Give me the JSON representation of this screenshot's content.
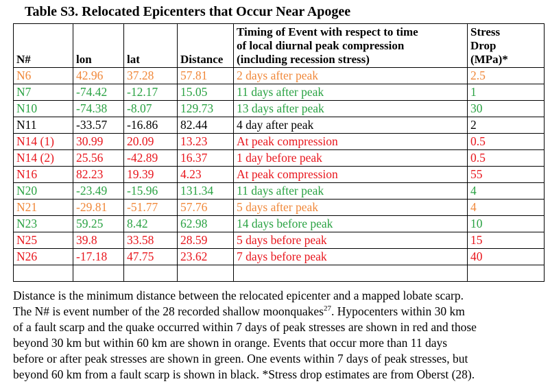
{
  "title": "Table S3. Relocated Epicenters that Occur Near Apogee",
  "headers": {
    "num": "N#",
    "lon": "lon",
    "lat": "lat",
    "distance": "Distance",
    "timing_l1": "Timing of Event with respect to time",
    "timing_l2": "of local diurnal peak compression",
    "timing_l3": "(including recession stress)",
    "stress_l1": "Stress",
    "stress_l2": "Drop",
    "stress_l3": "(MPa)*"
  },
  "colors": {
    "red": "#e8161d",
    "orange": "#f0883a",
    "green": "#2aa243",
    "black": "#000000"
  },
  "rows": [
    {
      "num": "N6",
      "lon": "42.96",
      "lat": "37.28",
      "distance": "57.81",
      "timing": "2 days after peak",
      "stress": "2.5",
      "color": "orange"
    },
    {
      "num": "N7",
      "lon": "-74.42",
      "lat": "-12.17",
      "distance": "15.05",
      "timing": "11 days after peak",
      "stress": "1",
      "color": "green"
    },
    {
      "num": "N10",
      "lon": "-74.38",
      "lat": "-8.07",
      "distance": "129.73",
      "timing": "13 days after peak",
      "stress": "30",
      "color": "green"
    },
    {
      "num": "N11",
      "lon": "-33.57",
      "lat": "-16.86",
      "distance": "82.44",
      "timing": "4 day after peak",
      "stress": "2",
      "color": "black"
    },
    {
      "num": "N14 (1)",
      "lon": "30.99",
      "lat": "20.09",
      "distance": "13.23",
      "timing": "At peak compression",
      "stress": "0.5",
      "color": "red"
    },
    {
      "num": "N14 (2)",
      "lon": "25.56",
      "lat": "-42.89",
      "distance": "16.37",
      "timing": "1 day before peak",
      "stress": "0.5",
      "color": "red"
    },
    {
      "num": "N16",
      "lon": "82.23",
      "lat": "19.39",
      "distance": "4.23",
      "timing": "At peak compression",
      "stress": "55",
      "color": "red"
    },
    {
      "num": "N20",
      "lon": "-23.49",
      "lat": "-15.96",
      "distance": "131.34",
      "timing": "11 days after peak",
      "stress": "4",
      "color": "green"
    },
    {
      "num": "N21",
      "lon": "-29.81",
      "lat": "-51.77",
      "distance": "57.76",
      "timing": "5 days after peak",
      "stress": "4",
      "color": "orange"
    },
    {
      "num": "N23",
      "lon": "59.25",
      "lat": "8.42",
      "distance": "62.98",
      "timing": "14 days before peak",
      "stress": "10",
      "color": "green"
    },
    {
      "num": "N25",
      "lon": "39.8",
      "lat": "33.58",
      "distance": "28.59",
      "timing": "5 days before peak",
      "stress": "15",
      "color": "red"
    },
    {
      "num": "N26",
      "lon": "-17.18",
      "lat": "47.75",
      "distance": "23.62",
      "timing": "7 days before peak",
      "stress": "40",
      "color": "red"
    }
  ],
  "caption": {
    "line1": "Distance is the minimum distance between the relocated epicenter and a mapped lobate scarp.",
    "line2a": "The N# is event number of the 28 recorded shallow moonquakes",
    "line2_sup": "27",
    "line2b": ".  Hypocenters within 30 km",
    "line3": "of a fault scarp and the quake occurred within 7 days of peak stresses are shown in red and those",
    "line4": "beyond 30 km but within 60 km are shown in orange. Events that occur more than 11 days",
    "line5": "before or after peak stresses are shown in green. One events within 7 days of peak stresses, but",
    "line6": "beyond 60 km from a fault scarp is shown in black.  *Stress drop estimates are from Oberst (28)."
  }
}
